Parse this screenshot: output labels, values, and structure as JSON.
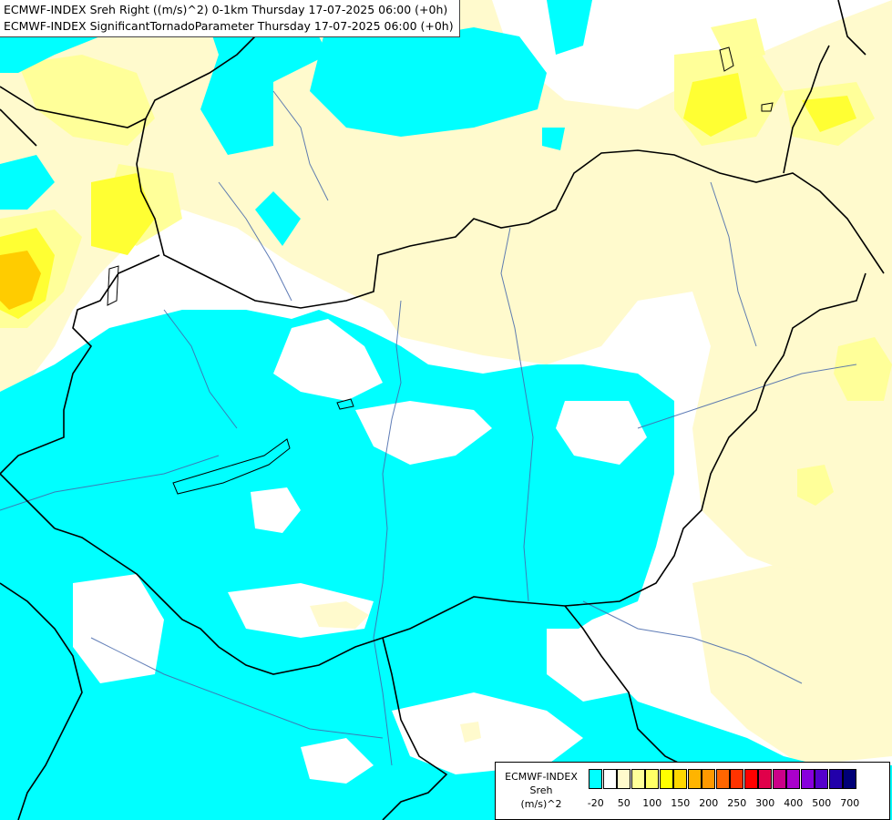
{
  "header": {
    "line1": "ECMWF-INDEX Sreh Right ((m/s)^2) 0-1km Thursday 17-07-2025 06:00 (+0h)",
    "line2": "ECMWF-INDEX SignificantTornadoParameter Thursday 17-07-2025 06:00 (+0h)"
  },
  "legend": {
    "title1": "ECMWF-INDEX",
    "title2": "Sreh",
    "title3": "(m/s)^2",
    "colors": [
      "#00ffff",
      "#ffffff",
      "#fffacd",
      "#ffff99",
      "#ffff66",
      "#ffff00",
      "#ffd700",
      "#ffb400",
      "#ff9900",
      "#ff6600",
      "#ff3300",
      "#ff0000",
      "#e0004a",
      "#cc0088",
      "#aa00cc",
      "#8800dd",
      "#5500cc",
      "#2200aa",
      "#000077"
    ],
    "ticks": [
      "-20",
      "50",
      "100",
      "150",
      "200",
      "250",
      "300",
      "400",
      "500",
      "700"
    ]
  },
  "colors": {
    "cyan": "#00ffff",
    "pale_yellow": "#fffacd",
    "light_yellow": "#ffff99",
    "yellow": "#ffff33",
    "orange": "#ffcc00",
    "border": "#000000",
    "river": "#4466aa"
  }
}
